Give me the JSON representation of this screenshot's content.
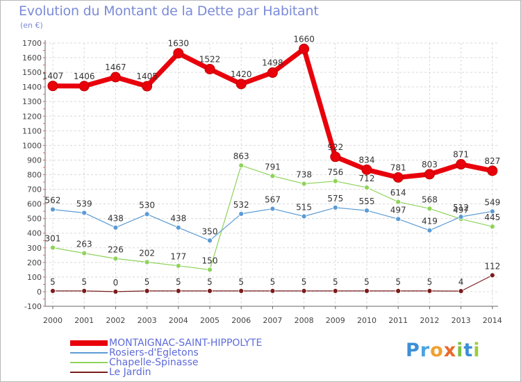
{
  "title": "Evolution du Montant de la Dette par Habitant",
  "units_label": "(en €)",
  "logo": {
    "text": "Proxiti",
    "colors": [
      "#3c8fd6",
      "#4aa3e0",
      "#f0a030",
      "#e86a2a",
      "#7cc242",
      "#3c8fd6",
      "#9ccc3a"
    ]
  },
  "chart_data": {
    "type": "line",
    "title": "Evolution du Montant de la Dette par Habitant",
    "ylabel": "(en €)",
    "xlabel": "",
    "x": [
      "2000",
      "2001",
      "2002",
      "2003",
      "2004",
      "2005",
      "2006",
      "2007",
      "2008",
      "2009",
      "2010",
      "2011",
      "2012",
      "2013",
      "2014"
    ],
    "ylim": [
      -100,
      1700
    ],
    "yticks": [
      -100,
      0,
      100,
      200,
      300,
      400,
      500,
      600,
      700,
      800,
      900,
      1000,
      1100,
      1200,
      1300,
      1400,
      1500,
      1600,
      1700
    ],
    "grid": true,
    "legend_position": "bottom-left",
    "series": [
      {
        "name": "MONTAIGNAC-SAINT-HIPPOLYTE",
        "color": "#e8000b",
        "values": [
          1407,
          1406,
          1467,
          1405,
          1630,
          1522,
          1420,
          1498,
          1660,
          922,
          834,
          781,
          803,
          871,
          827
        ]
      },
      {
        "name": "Rosiers-d'Egletons",
        "color": "#5b9bd5",
        "values": [
          562,
          539,
          438,
          530,
          438,
          350,
          532,
          567,
          515,
          575,
          555,
          497,
          419,
          512,
          549
        ]
      },
      {
        "name": "Chapelle-Spinasse",
        "color": "#8ed35a",
        "values": [
          301,
          263,
          226,
          202,
          177,
          150,
          863,
          791,
          738,
          756,
          712,
          614,
          568,
          497,
          445
        ]
      },
      {
        "name": "Le Jardin",
        "color": "#7a1c1c",
        "values": [
          5,
          5,
          0,
          5,
          5,
          5,
          5,
          5,
          5,
          5,
          5,
          5,
          5,
          4,
          112
        ]
      }
    ]
  }
}
